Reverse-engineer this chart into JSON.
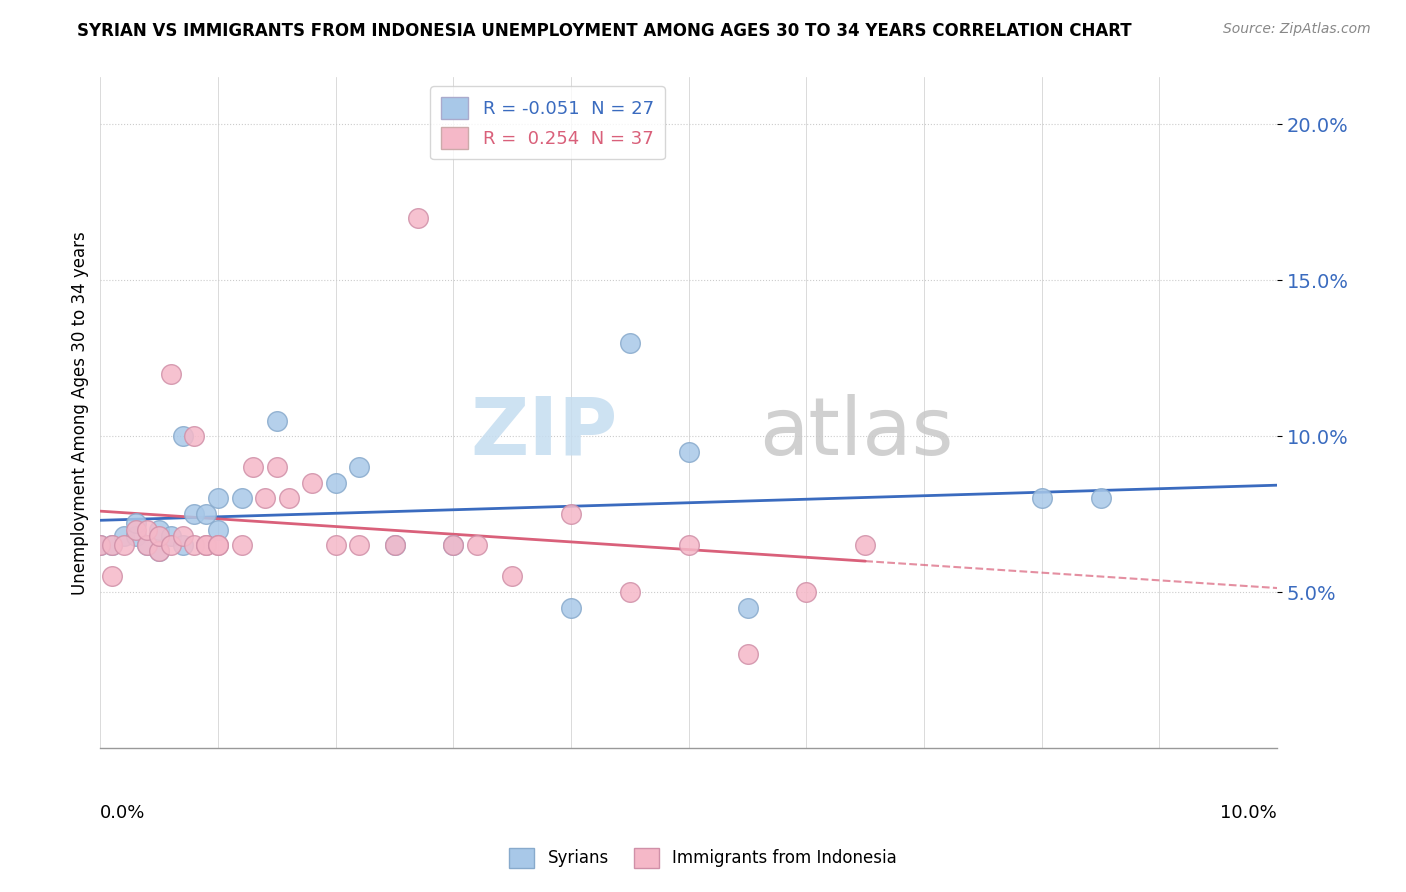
{
  "title": "SYRIAN VS IMMIGRANTS FROM INDONESIA UNEMPLOYMENT AMONG AGES 30 TO 34 YEARS CORRELATION CHART",
  "source": "Source: ZipAtlas.com",
  "ylabel": "Unemployment Among Ages 30 to 34 years",
  "xmin": 0.0,
  "xmax": 0.1,
  "ymin": 0.0,
  "ymax": 0.215,
  "yticks": [
    0.05,
    0.1,
    0.15,
    0.2
  ],
  "ytick_labels": [
    "5.0%",
    "10.0%",
    "15.0%",
    "20.0%"
  ],
  "legend1_label": "R = -0.051  N = 27",
  "legend2_label": "R =  0.254  N = 37",
  "color_blue": "#a8c8e8",
  "color_pink": "#f5b8c8",
  "trendline_blue": "#3a6bbf",
  "trendline_pink": "#d9607a",
  "watermark_zip": "ZIP",
  "watermark_atlas": "atlas",
  "syrians_x": [
    0.0,
    0.001,
    0.002,
    0.003,
    0.003,
    0.004,
    0.005,
    0.005,
    0.006,
    0.007,
    0.007,
    0.008,
    0.009,
    0.01,
    0.01,
    0.012,
    0.015,
    0.02,
    0.022,
    0.025,
    0.03,
    0.04,
    0.045,
    0.05,
    0.055,
    0.08,
    0.085
  ],
  "syrians_y": [
    0.065,
    0.065,
    0.068,
    0.068,
    0.072,
    0.065,
    0.063,
    0.07,
    0.068,
    0.065,
    0.1,
    0.075,
    0.075,
    0.07,
    0.08,
    0.08,
    0.105,
    0.085,
    0.09,
    0.065,
    0.065,
    0.045,
    0.13,
    0.095,
    0.045,
    0.08,
    0.08
  ],
  "indonesia_x": [
    0.0,
    0.001,
    0.001,
    0.002,
    0.003,
    0.004,
    0.004,
    0.005,
    0.005,
    0.006,
    0.006,
    0.007,
    0.008,
    0.008,
    0.009,
    0.009,
    0.01,
    0.01,
    0.012,
    0.013,
    0.014,
    0.015,
    0.016,
    0.018,
    0.02,
    0.022,
    0.025,
    0.027,
    0.03,
    0.032,
    0.035,
    0.04,
    0.045,
    0.05,
    0.055,
    0.06,
    0.065
  ],
  "indonesia_y": [
    0.065,
    0.065,
    0.055,
    0.065,
    0.07,
    0.065,
    0.07,
    0.063,
    0.068,
    0.065,
    0.12,
    0.068,
    0.065,
    0.1,
    0.065,
    0.065,
    0.065,
    0.065,
    0.065,
    0.09,
    0.08,
    0.09,
    0.08,
    0.085,
    0.065,
    0.065,
    0.065,
    0.17,
    0.065,
    0.065,
    0.055,
    0.075,
    0.05,
    0.065,
    0.03,
    0.05,
    0.065
  ]
}
